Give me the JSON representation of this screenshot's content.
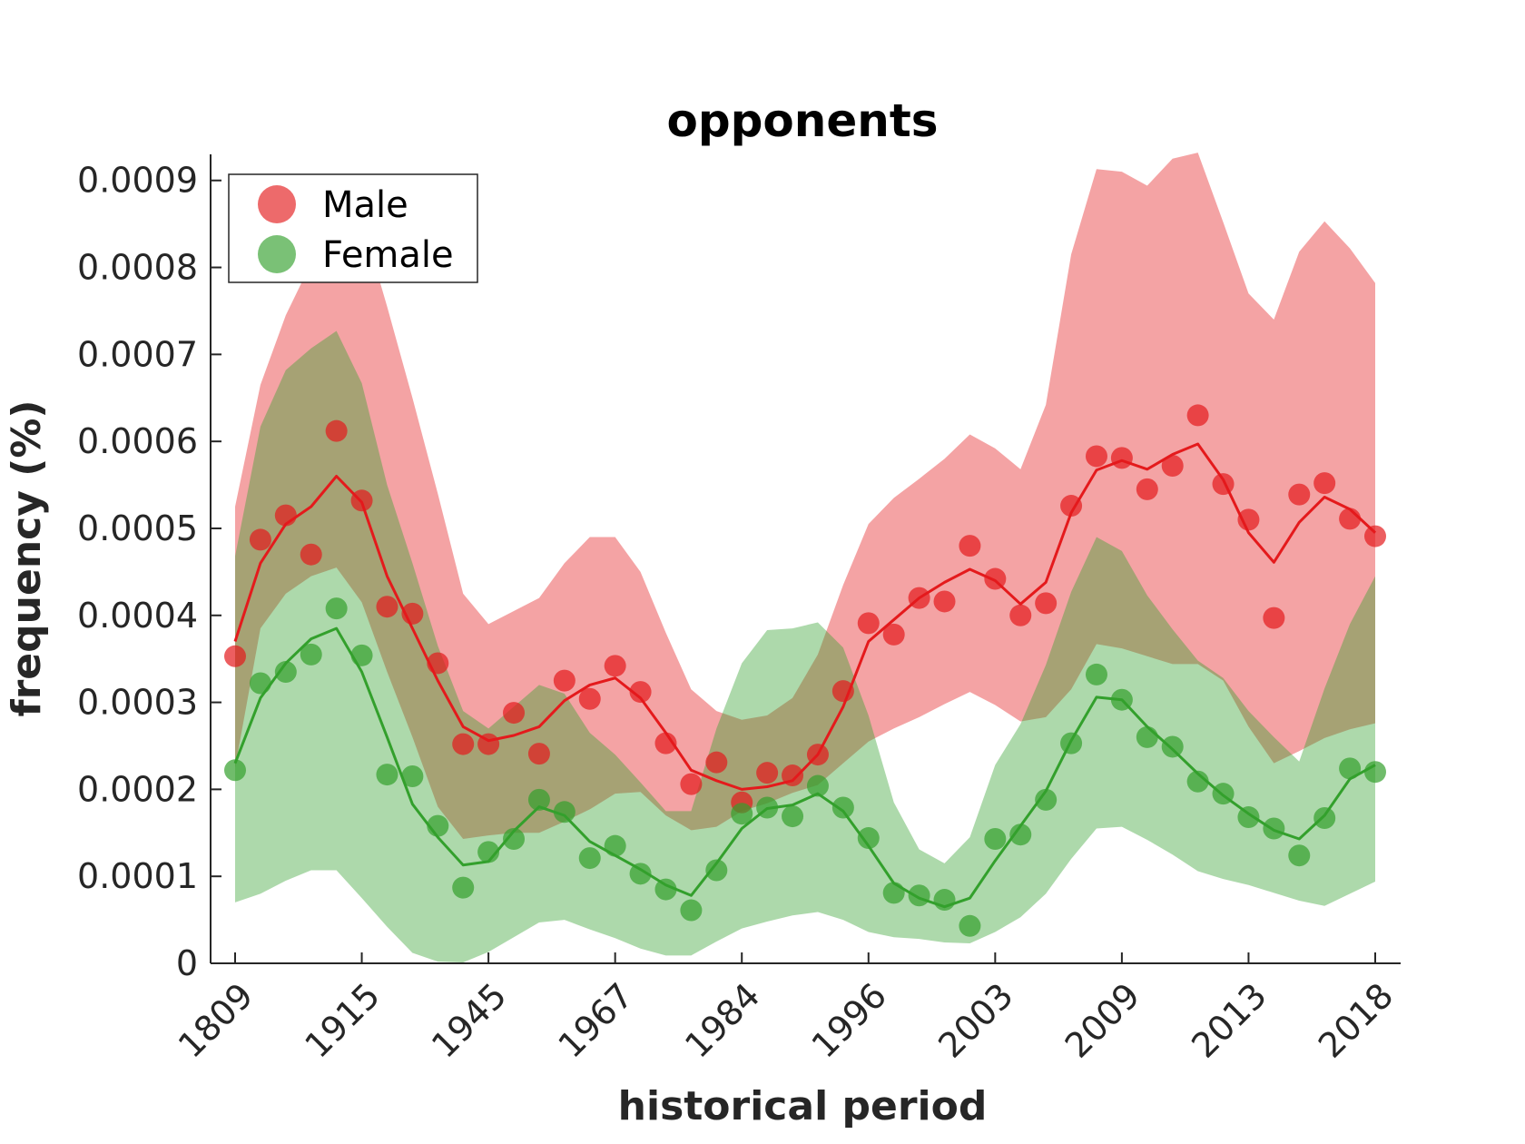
{
  "chart_data": {
    "type": "scatter",
    "title": "opponents",
    "xlabel": "historical period",
    "ylabel": "frequency (%)",
    "ylim": [
      0,
      0.00093
    ],
    "x_tick_labels": [
      "1809",
      "1915",
      "1945",
      "1967",
      "1984",
      "1996",
      "2003",
      "2009",
      "2013",
      "2018"
    ],
    "x_tick_positions": [
      1,
      6,
      11,
      16,
      21,
      26,
      31,
      36,
      41,
      46
    ],
    "y_ticks": [
      0,
      0.0001,
      0.0002,
      0.0003,
      0.0004,
      0.0005,
      0.0006,
      0.0007,
      0.0008,
      0.0009
    ],
    "y_tick_labels": [
      "0",
      "0.0001",
      "0.0002",
      "0.0003",
      "0.0004",
      "0.0005",
      "0.0006",
      "0.0007",
      "0.0008",
      "0.0009"
    ],
    "legend_position": "top-left",
    "grid": false,
    "x": [
      1,
      2,
      3,
      4,
      5,
      6,
      7,
      8,
      9,
      10,
      11,
      12,
      13,
      14,
      15,
      16,
      17,
      18,
      19,
      20,
      21,
      22,
      23,
      24,
      25,
      26,
      27,
      28,
      29,
      30,
      31,
      32,
      33,
      34,
      35,
      36,
      37,
      38,
      39,
      40,
      41,
      42,
      43,
      44,
      45,
      46
    ],
    "series": [
      {
        "name": "Male",
        "color": "#e41a1c",
        "points": [
          0.000353,
          0.000487,
          0.000515,
          0.00047,
          0.000612,
          0.000532,
          0.00041,
          0.000402,
          0.000345,
          0.000252,
          0.000252,
          0.000288,
          0.000241,
          0.000325,
          0.000304,
          0.000342,
          0.000312,
          0.000253,
          0.000206,
          0.000231,
          0.000185,
          0.000219,
          0.000216,
          0.00024,
          0.000313,
          0.000391,
          0.000378,
          0.00042,
          0.000416,
          0.00048,
          0.000442,
          0.0004,
          0.000414,
          0.000526,
          0.000583,
          0.000581,
          0.000545,
          0.000572,
          0.00063,
          0.000551,
          0.00051,
          0.000397,
          0.000539,
          0.000552,
          0.000511,
          0.000491
        ],
        "trend": [
          0.00037,
          0.00046,
          0.000505,
          0.000525,
          0.00056,
          0.00053,
          0.000445,
          0.000385,
          0.000325,
          0.000272,
          0.000256,
          0.000262,
          0.000272,
          0.000302,
          0.00032,
          0.000328,
          0.000305,
          0.000265,
          0.000222,
          0.00021,
          0.0002,
          0.000203,
          0.00021,
          0.00024,
          0.000295,
          0.00037,
          0.000395,
          0.00042,
          0.000438,
          0.000453,
          0.00044,
          0.000413,
          0.000438,
          0.000518,
          0.000567,
          0.000578,
          0.000568,
          0.000585,
          0.000597,
          0.000556,
          0.000495,
          0.000461,
          0.000507,
          0.000536,
          0.000522,
          0.000495
        ],
        "band_upper": [
          0.000525,
          0.000665,
          0.000745,
          0.000805,
          0.00081,
          0.000855,
          0.000755,
          0.00065,
          0.00054,
          0.000425,
          0.00039,
          0.000405,
          0.00042,
          0.00046,
          0.00049,
          0.00049,
          0.00045,
          0.00038,
          0.000315,
          0.00029,
          0.00028,
          0.000285,
          0.000305,
          0.000355,
          0.000435,
          0.000505,
          0.000535,
          0.000557,
          0.00058,
          0.000608,
          0.000592,
          0.000568,
          0.000642,
          0.000815,
          0.000913,
          0.00091,
          0.000894,
          0.000925,
          0.000932,
          0.000852,
          0.00077,
          0.00074,
          0.000818,
          0.000853,
          0.000822,
          0.000782
        ],
        "band_lower": [
          0.000225,
          0.000385,
          0.000425,
          0.000445,
          0.000455,
          0.000415,
          0.000335,
          0.00026,
          0.00018,
          0.000143,
          0.000147,
          0.00015,
          0.00015,
          0.000163,
          0.000177,
          0.000195,
          0.000197,
          0.00017,
          0.000153,
          0.000157,
          0.000175,
          0.000184,
          0.000196,
          0.000205,
          0.00023,
          0.000255,
          0.00027,
          0.000283,
          0.000298,
          0.000312,
          0.000297,
          0.000278,
          0.000283,
          0.000315,
          0.000367,
          0.000362,
          0.000353,
          0.000344,
          0.000344,
          0.000325,
          0.000272,
          0.00023,
          0.000244,
          0.000259,
          0.000269,
          0.000276
        ]
      },
      {
        "name": "Female",
        "color": "#33a02c",
        "points": [
          0.000222,
          0.000322,
          0.000335,
          0.000355,
          0.000408,
          0.000354,
          0.000217,
          0.000215,
          0.000158,
          8.7e-05,
          0.000128,
          0.000143,
          0.000188,
          0.000174,
          0.000121,
          0.000135,
          0.000103,
          8.5e-05,
          6.1e-05,
          0.000107,
          0.000172,
          0.000179,
          0.000169,
          0.000204,
          0.000179,
          0.000144,
          8.1e-05,
          7.8e-05,
          7.3e-05,
          4.3e-05,
          0.000143,
          0.000148,
          0.000188,
          0.000253,
          0.000332,
          0.000303,
          0.00026,
          0.000249,
          0.000209,
          0.000195,
          0.000168,
          0.000155,
          0.000124,
          0.000167,
          0.000224,
          0.00022
        ],
        "trend": [
          0.00023,
          0.000305,
          0.000345,
          0.000373,
          0.000385,
          0.000335,
          0.00026,
          0.000183,
          0.000145,
          0.000113,
          0.000117,
          0.000152,
          0.00018,
          0.00017,
          0.00014,
          0.000124,
          0.000108,
          9e-05,
          7.8e-05,
          0.000115,
          0.000155,
          0.000178,
          0.000182,
          0.000195,
          0.000175,
          0.000135,
          9.2e-05,
          7.5e-05,
          6.5e-05,
          7.5e-05,
          0.000118,
          0.000158,
          0.000198,
          0.000256,
          0.000306,
          0.000303,
          0.000272,
          0.000246,
          0.000218,
          0.000193,
          0.000172,
          0.000153,
          0.000143,
          0.00017,
          0.000212,
          0.000228
        ],
        "band_upper": [
          0.000468,
          0.000617,
          0.000682,
          0.000707,
          0.000727,
          0.000667,
          0.00055,
          0.00046,
          0.000365,
          0.00029,
          0.00027,
          0.000295,
          0.00032,
          0.00031,
          0.000265,
          0.00024,
          0.000208,
          0.000175,
          0.000175,
          0.00027,
          0.000345,
          0.000383,
          0.000385,
          0.000392,
          0.000363,
          0.000285,
          0.000185,
          0.000131,
          0.000115,
          0.000145,
          0.000228,
          0.000275,
          0.000343,
          0.000427,
          0.00049,
          0.000474,
          0.000423,
          0.000384,
          0.000348,
          0.000328,
          0.00029,
          0.00026,
          0.000232,
          0.000316,
          0.00039,
          0.000445
        ],
        "band_lower": [
          7e-05,
          8e-05,
          9.5e-05,
          0.000107,
          0.000107,
          7.5e-05,
          4.2e-05,
          1.2e-05,
          2e-06,
          1e-06,
          1.3e-05,
          3e-05,
          4.7e-05,
          5e-05,
          3.9e-05,
          2.9e-05,
          1.7e-05,
          9e-06,
          9e-06,
          2.5e-05,
          4e-05,
          4.8e-05,
          5.5e-05,
          5.9e-05,
          5e-05,
          3.6e-05,
          3e-05,
          2.8e-05,
          2.4e-05,
          2.3e-05,
          3.6e-05,
          5.3e-05,
          8e-05,
          0.00012,
          0.000155,
          0.000157,
          0.000142,
          0.000125,
          0.000106,
          9.7e-05,
          9e-05,
          8.1e-05,
          7.2e-05,
          6.6e-05,
          8e-05,
          9.4e-05
        ]
      }
    ]
  }
}
